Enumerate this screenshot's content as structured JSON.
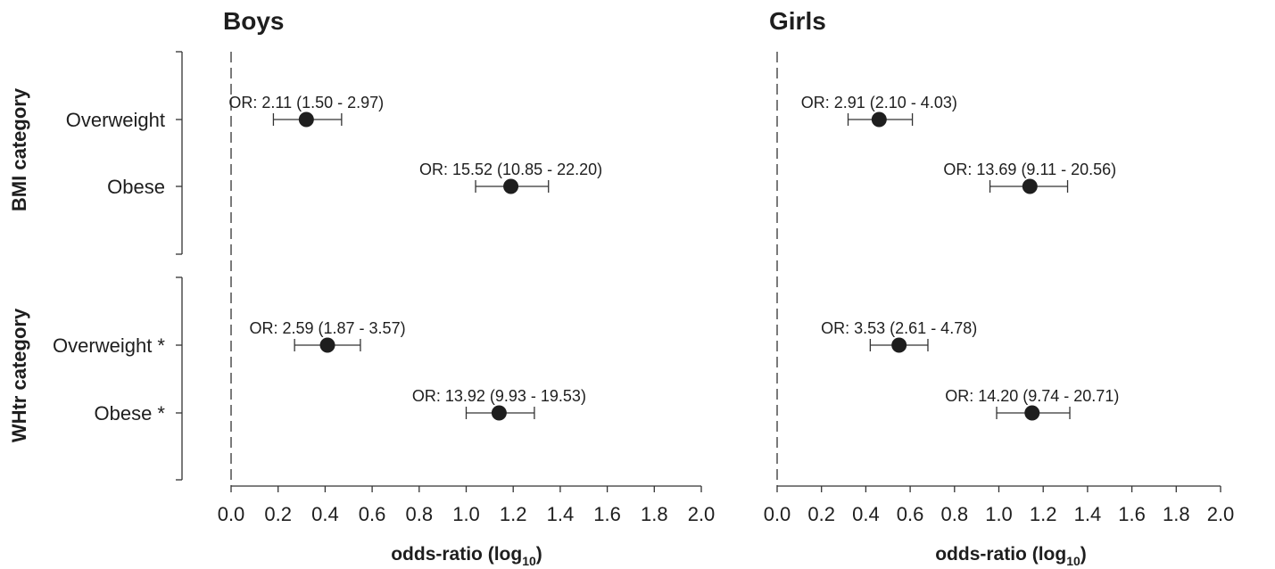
{
  "chart_data": {
    "type": "scatter",
    "subtype": "forest-plot",
    "xlabel_main": "odds-ratio (log",
    "xlabel_sub": "10",
    "xlabel_close": ")",
    "xlim": [
      0.0,
      2.0
    ],
    "xticks": [
      "0.0",
      "0.2",
      "0.4",
      "0.6",
      "0.8",
      "1.0",
      "1.2",
      "1.4",
      "1.6",
      "1.8",
      "2.0"
    ],
    "reference_line": 0.0,
    "groups": [
      {
        "label": "BMI category",
        "categories": [
          "Overweight",
          "Obese"
        ]
      },
      {
        "label": "WHtr category",
        "categories": [
          "Overweight *",
          "Obese *"
        ]
      }
    ],
    "panels": [
      {
        "title": "Boys",
        "points": [
          {
            "group": 0,
            "row": 0,
            "x": 0.32,
            "lo": 0.18,
            "hi": 0.47,
            "label": "OR: 2.11 (1.50 - 2.97)"
          },
          {
            "group": 0,
            "row": 1,
            "x": 1.19,
            "lo": 1.04,
            "hi": 1.35,
            "label": "OR: 15.52 (10.85 - 22.20)"
          },
          {
            "group": 1,
            "row": 0,
            "x": 0.41,
            "lo": 0.27,
            "hi": 0.55,
            "label": "OR: 2.59 (1.87 - 3.57)"
          },
          {
            "group": 1,
            "row": 1,
            "x": 1.14,
            "lo": 1.0,
            "hi": 1.29,
            "label": "OR: 13.92 (9.93 - 19.53)"
          }
        ]
      },
      {
        "title": "Girls",
        "points": [
          {
            "group": 0,
            "row": 0,
            "x": 0.46,
            "lo": 0.32,
            "hi": 0.61,
            "label": "OR: 2.91 (2.10 - 4.03)"
          },
          {
            "group": 0,
            "row": 1,
            "x": 1.14,
            "lo": 0.96,
            "hi": 1.31,
            "label": "OR: 13.69 (9.11 - 20.56)"
          },
          {
            "group": 1,
            "row": 0,
            "x": 0.55,
            "lo": 0.42,
            "hi": 0.68,
            "label": "OR: 3.53 (2.61 - 4.78)"
          },
          {
            "group": 1,
            "row": 1,
            "x": 1.15,
            "lo": 0.99,
            "hi": 1.32,
            "label": "OR: 14.20 (9.74 - 20.71)"
          }
        ]
      }
    ]
  }
}
